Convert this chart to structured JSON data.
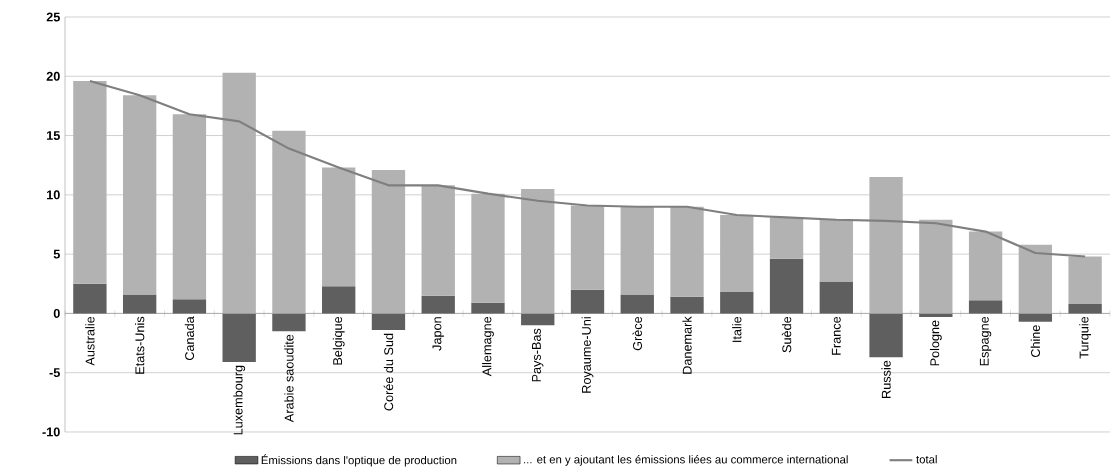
{
  "chart_data": {
    "type": "bar",
    "stacked": true,
    "categories": [
      "Australie",
      "Etats-Unis",
      "Canada",
      "Luxembourg",
      "Arabie saoudite",
      "Belgique",
      "Corée du Sud",
      "Japon",
      "Allemagne",
      "Pays-Bas",
      "Royaume-Uni",
      "Grèce",
      "Danemark",
      "Italie",
      "Suède",
      "France",
      "Russie",
      "Pologne",
      "Espagne",
      "Chine",
      "Turquie"
    ],
    "series": [
      {
        "name": "Émissions dans l'optique de production",
        "color": "#5f5f5f",
        "values": [
          2.5,
          1.6,
          1.2,
          -4.1,
          -1.5,
          2.3,
          -1.4,
          1.5,
          0.9,
          -1.0,
          2.0,
          1.6,
          1.4,
          1.8,
          4.6,
          2.7,
          -3.7,
          -0.3,
          1.1,
          -0.7,
          0.8
        ]
      },
      {
        "name": "... et en y ajoutant les émissions liées au commerce international",
        "color": "#b2b2b2",
        "values": [
          17.1,
          16.8,
          15.6,
          20.3,
          15.4,
          10.0,
          12.1,
          9.3,
          9.2,
          10.5,
          7.1,
          7.4,
          7.6,
          6.5,
          3.5,
          5.2,
          11.5,
          7.9,
          5.8,
          5.8,
          4.0
        ]
      },
      {
        "name": "total",
        "type": "line",
        "color": "#7f7f7f",
        "values": [
          19.6,
          18.4,
          16.8,
          16.2,
          13.9,
          12.3,
          10.8,
          10.8,
          10.1,
          9.5,
          9.1,
          9.0,
          9.0,
          8.3,
          8.1,
          7.9,
          7.8,
          7.6,
          6.9,
          5.1,
          4.8
        ]
      }
    ],
    "ylim": [
      -10,
      25
    ],
    "yticks": [
      -10,
      -5,
      0,
      5,
      10,
      15,
      20,
      25
    ],
    "grid": "y",
    "legend": "bottom"
  }
}
